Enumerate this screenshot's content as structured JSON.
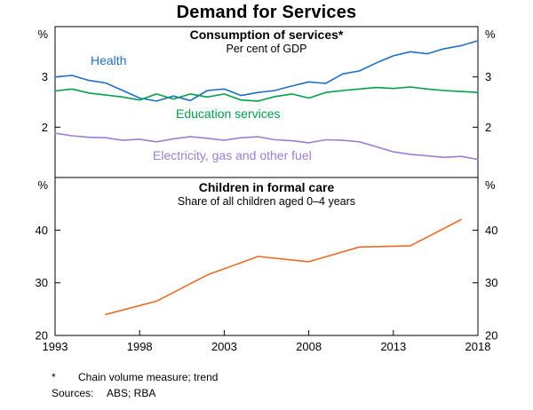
{
  "title": "Demand for Services",
  "xaxis": {
    "range": [
      1993,
      2018
    ],
    "ticks": [
      1993,
      1998,
      2003,
      2008,
      2013,
      2018
    ]
  },
  "chart_data": [
    {
      "type": "line",
      "panel": "top",
      "title": "Consumption of services*",
      "subtitle": "Per cent of GDP",
      "unit": "%",
      "ylim": [
        1,
        4
      ],
      "yticks": [
        2,
        3
      ],
      "grid": false,
      "x": [
        1993,
        1994,
        1995,
        1996,
        1997,
        1998,
        1999,
        2000,
        2001,
        2002,
        2003,
        2004,
        2005,
        2006,
        2007,
        2008,
        2009,
        2010,
        2011,
        2012,
        2013,
        2014,
        2015,
        2016,
        2017,
        2018
      ],
      "series": [
        {
          "name": "Health",
          "color": "#1f6fc1",
          "values": [
            3.0,
            3.03,
            2.93,
            2.88,
            2.73,
            2.58,
            2.52,
            2.62,
            2.53,
            2.73,
            2.76,
            2.63,
            2.69,
            2.73,
            2.82,
            2.9,
            2.87,
            3.06,
            3.12,
            3.28,
            3.42,
            3.5,
            3.46,
            3.56,
            3.62,
            3.72
          ]
        },
        {
          "name": "Education services",
          "color": "#00a04a",
          "values": [
            2.72,
            2.76,
            2.68,
            2.64,
            2.6,
            2.54,
            2.66,
            2.56,
            2.66,
            2.6,
            2.66,
            2.54,
            2.52,
            2.61,
            2.66,
            2.58,
            2.69,
            2.73,
            2.76,
            2.79,
            2.77,
            2.8,
            2.76,
            2.73,
            2.71,
            2.69
          ]
        },
        {
          "name": "Electricity, gas and other fuel",
          "color": "#9d7ed0",
          "values": [
            1.88,
            1.83,
            1.8,
            1.79,
            1.74,
            1.76,
            1.71,
            1.77,
            1.81,
            1.78,
            1.74,
            1.79,
            1.81,
            1.75,
            1.73,
            1.69,
            1.75,
            1.74,
            1.71,
            1.61,
            1.51,
            1.46,
            1.43,
            1.4,
            1.42,
            1.36
          ]
        }
      ]
    },
    {
      "type": "line",
      "panel": "bottom",
      "title": "Children in formal care",
      "subtitle": "Share of all children aged 0–4 years",
      "unit": "%",
      "ylim": [
        20,
        50
      ],
      "yticks": [
        20,
        30,
        40
      ],
      "grid": false,
      "series": [
        {
          "name": "Children in formal care",
          "color": "#e96b23",
          "x": [
            1996,
            1999,
            2002,
            2005,
            2008,
            2011,
            2014,
            2017
          ],
          "values": [
            24,
            26.5,
            31.5,
            35,
            34,
            36.8,
            37,
            42
          ]
        }
      ]
    }
  ],
  "footnote": {
    "marker": "*",
    "text": "Chain volume measure; trend"
  },
  "sources": {
    "label": "Sources:",
    "value": "ABS; RBA"
  }
}
